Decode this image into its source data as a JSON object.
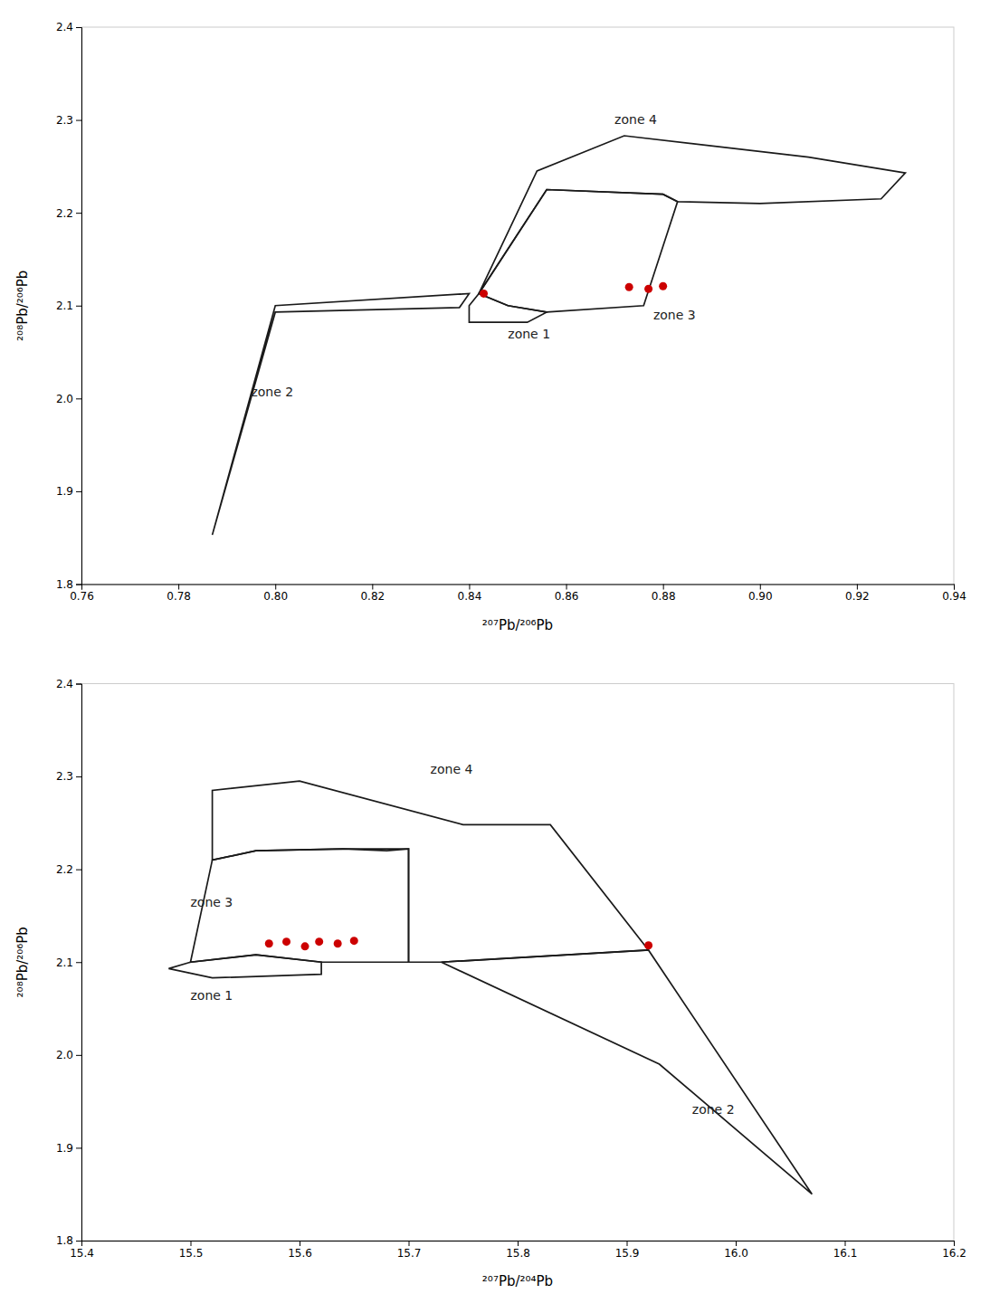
{
  "chart_data": [
    {
      "type": "scatter",
      "xlabel": "²⁰⁷Pb/²⁰⁶Pb",
      "ylabel": "²⁰⁸Pb/²⁰⁶Pb",
      "xlim": [
        0.76,
        0.94
      ],
      "ylim": [
        1.8,
        2.4
      ],
      "xticks": [
        0.76,
        0.78,
        {
          "value": 0.8,
          "label": "0.80"
        },
        0.82,
        0.84,
        0.86,
        0.88,
        {
          "value": 0.9,
          "label": "0.90"
        },
        0.92,
        0.94
      ],
      "yticks": [
        1.8,
        1.9,
        {
          "value": 2.0,
          "label": "2.0"
        },
        2.1,
        2.2,
        2.3,
        2.4
      ],
      "series": [
        {
          "type": "line",
          "color": "#1a1a1a",
          "x": [
            0.84,
            0.842,
            0.848,
            0.856,
            0.852,
            0.84
          ],
          "values": [
            2.1,
            2.113,
            2.1,
            2.093,
            2.082,
            2.082
          ]
        },
        {
          "type": "line",
          "color": "#1a1a1a",
          "x": [
            0.787,
            0.8,
            0.84,
            0.838,
            0.8,
            0.787
          ],
          "values": [
            1.853,
            2.1,
            2.113,
            2.098,
            2.093,
            1.853
          ]
        },
        {
          "type": "line",
          "color": "#1a1a1a",
          "x": [
            0.842,
            0.856,
            0.88,
            0.883,
            0.876,
            0.856,
            0.848
          ],
          "values": [
            2.113,
            2.225,
            2.22,
            2.212,
            2.1,
            2.093,
            2.1
          ]
        },
        {
          "type": "line",
          "color": "#1a1a1a",
          "x": [
            0.842,
            0.854,
            0.872,
            0.91,
            0.93,
            0.925,
            0.9,
            0.883,
            0.88,
            0.856
          ],
          "values": [
            2.113,
            2.245,
            2.283,
            2.26,
            2.243,
            2.215,
            2.21,
            2.212,
            2.22,
            2.225
          ]
        },
        {
          "type": "scatter",
          "color": "#cc0000",
          "x": [
            0.843,
            0.873,
            0.877,
            0.88
          ],
          "values": [
            2.113,
            2.12,
            2.118,
            2.121
          ]
        }
      ],
      "annotations": [
        {
          "text": "zone 1",
          "x": 0.848,
          "y": 2.078
        },
        {
          "text": "zone 2",
          "x": 0.795,
          "y": 2.015
        },
        {
          "text": "zone 3",
          "x": 0.878,
          "y": 2.098
        },
        {
          "text": "zone 4",
          "x": 0.87,
          "y": 2.293
        }
      ]
    },
    {
      "type": "scatter",
      "xlabel": "²⁰⁷Pb/²⁰⁴Pb",
      "ylabel": "²⁰⁸Pb/²⁰⁶Pb",
      "xlim": [
        15.4,
        16.2
      ],
      "ylim": [
        1.8,
        2.4
      ],
      "xticks": [
        15.4,
        15.5,
        15.6,
        15.7,
        15.8,
        15.9,
        {
          "value": 16.0,
          "label": "16.0"
        },
        16.1,
        16.2
      ],
      "yticks": [
        1.8,
        1.9,
        {
          "value": 2.0,
          "label": "2.0"
        },
        2.1,
        2.2,
        2.3,
        2.4
      ],
      "series": [
        {
          "type": "line",
          "color": "#1a1a1a",
          "x": [
            15.48,
            15.5,
            15.56,
            15.62,
            15.62,
            15.52
          ],
          "values": [
            2.093,
            2.1,
            2.108,
            2.1,
            2.087,
            2.083
          ]
        },
        {
          "type": "line",
          "color": "#1a1a1a",
          "x": [
            15.73,
            15.92,
            16.07,
            15.93,
            15.73
          ],
          "values": [
            2.1,
            2.113,
            1.85,
            1.99,
            2.1
          ]
        },
        {
          "type": "line",
          "color": "#1a1a1a",
          "x": [
            15.5,
            15.52,
            15.56,
            15.64,
            15.68,
            15.7,
            15.7,
            15.62,
            15.56
          ],
          "values": [
            2.1,
            2.21,
            2.22,
            2.222,
            2.22,
            2.222,
            2.1,
            2.1,
            2.108
          ]
        },
        {
          "type": "line",
          "color": "#1a1a1a",
          "x": [
            15.52,
            15.52,
            15.6,
            15.75,
            15.83,
            15.92,
            15.73,
            15.7,
            15.7,
            15.64,
            15.56
          ],
          "values": [
            2.21,
            2.285,
            2.295,
            2.248,
            2.248,
            2.113,
            2.1,
            2.1,
            2.222,
            2.222,
            2.22
          ]
        },
        {
          "type": "scatter",
          "color": "#cc0000",
          "x": [
            15.572,
            15.588,
            15.605,
            15.618,
            15.635,
            15.65,
            15.92
          ],
          "values": [
            2.12,
            2.122,
            2.117,
            2.122,
            2.12,
            2.123,
            2.118
          ]
        }
      ],
      "annotations": [
        {
          "text": "zone 1",
          "x": 15.5,
          "y": 2.072
        },
        {
          "text": "zone 2",
          "x": 15.96,
          "y": 1.95
        },
        {
          "text": "zone 3",
          "x": 15.5,
          "y": 2.173
        },
        {
          "text": "zone 4",
          "x": 15.72,
          "y": 2.3
        }
      ]
    }
  ]
}
